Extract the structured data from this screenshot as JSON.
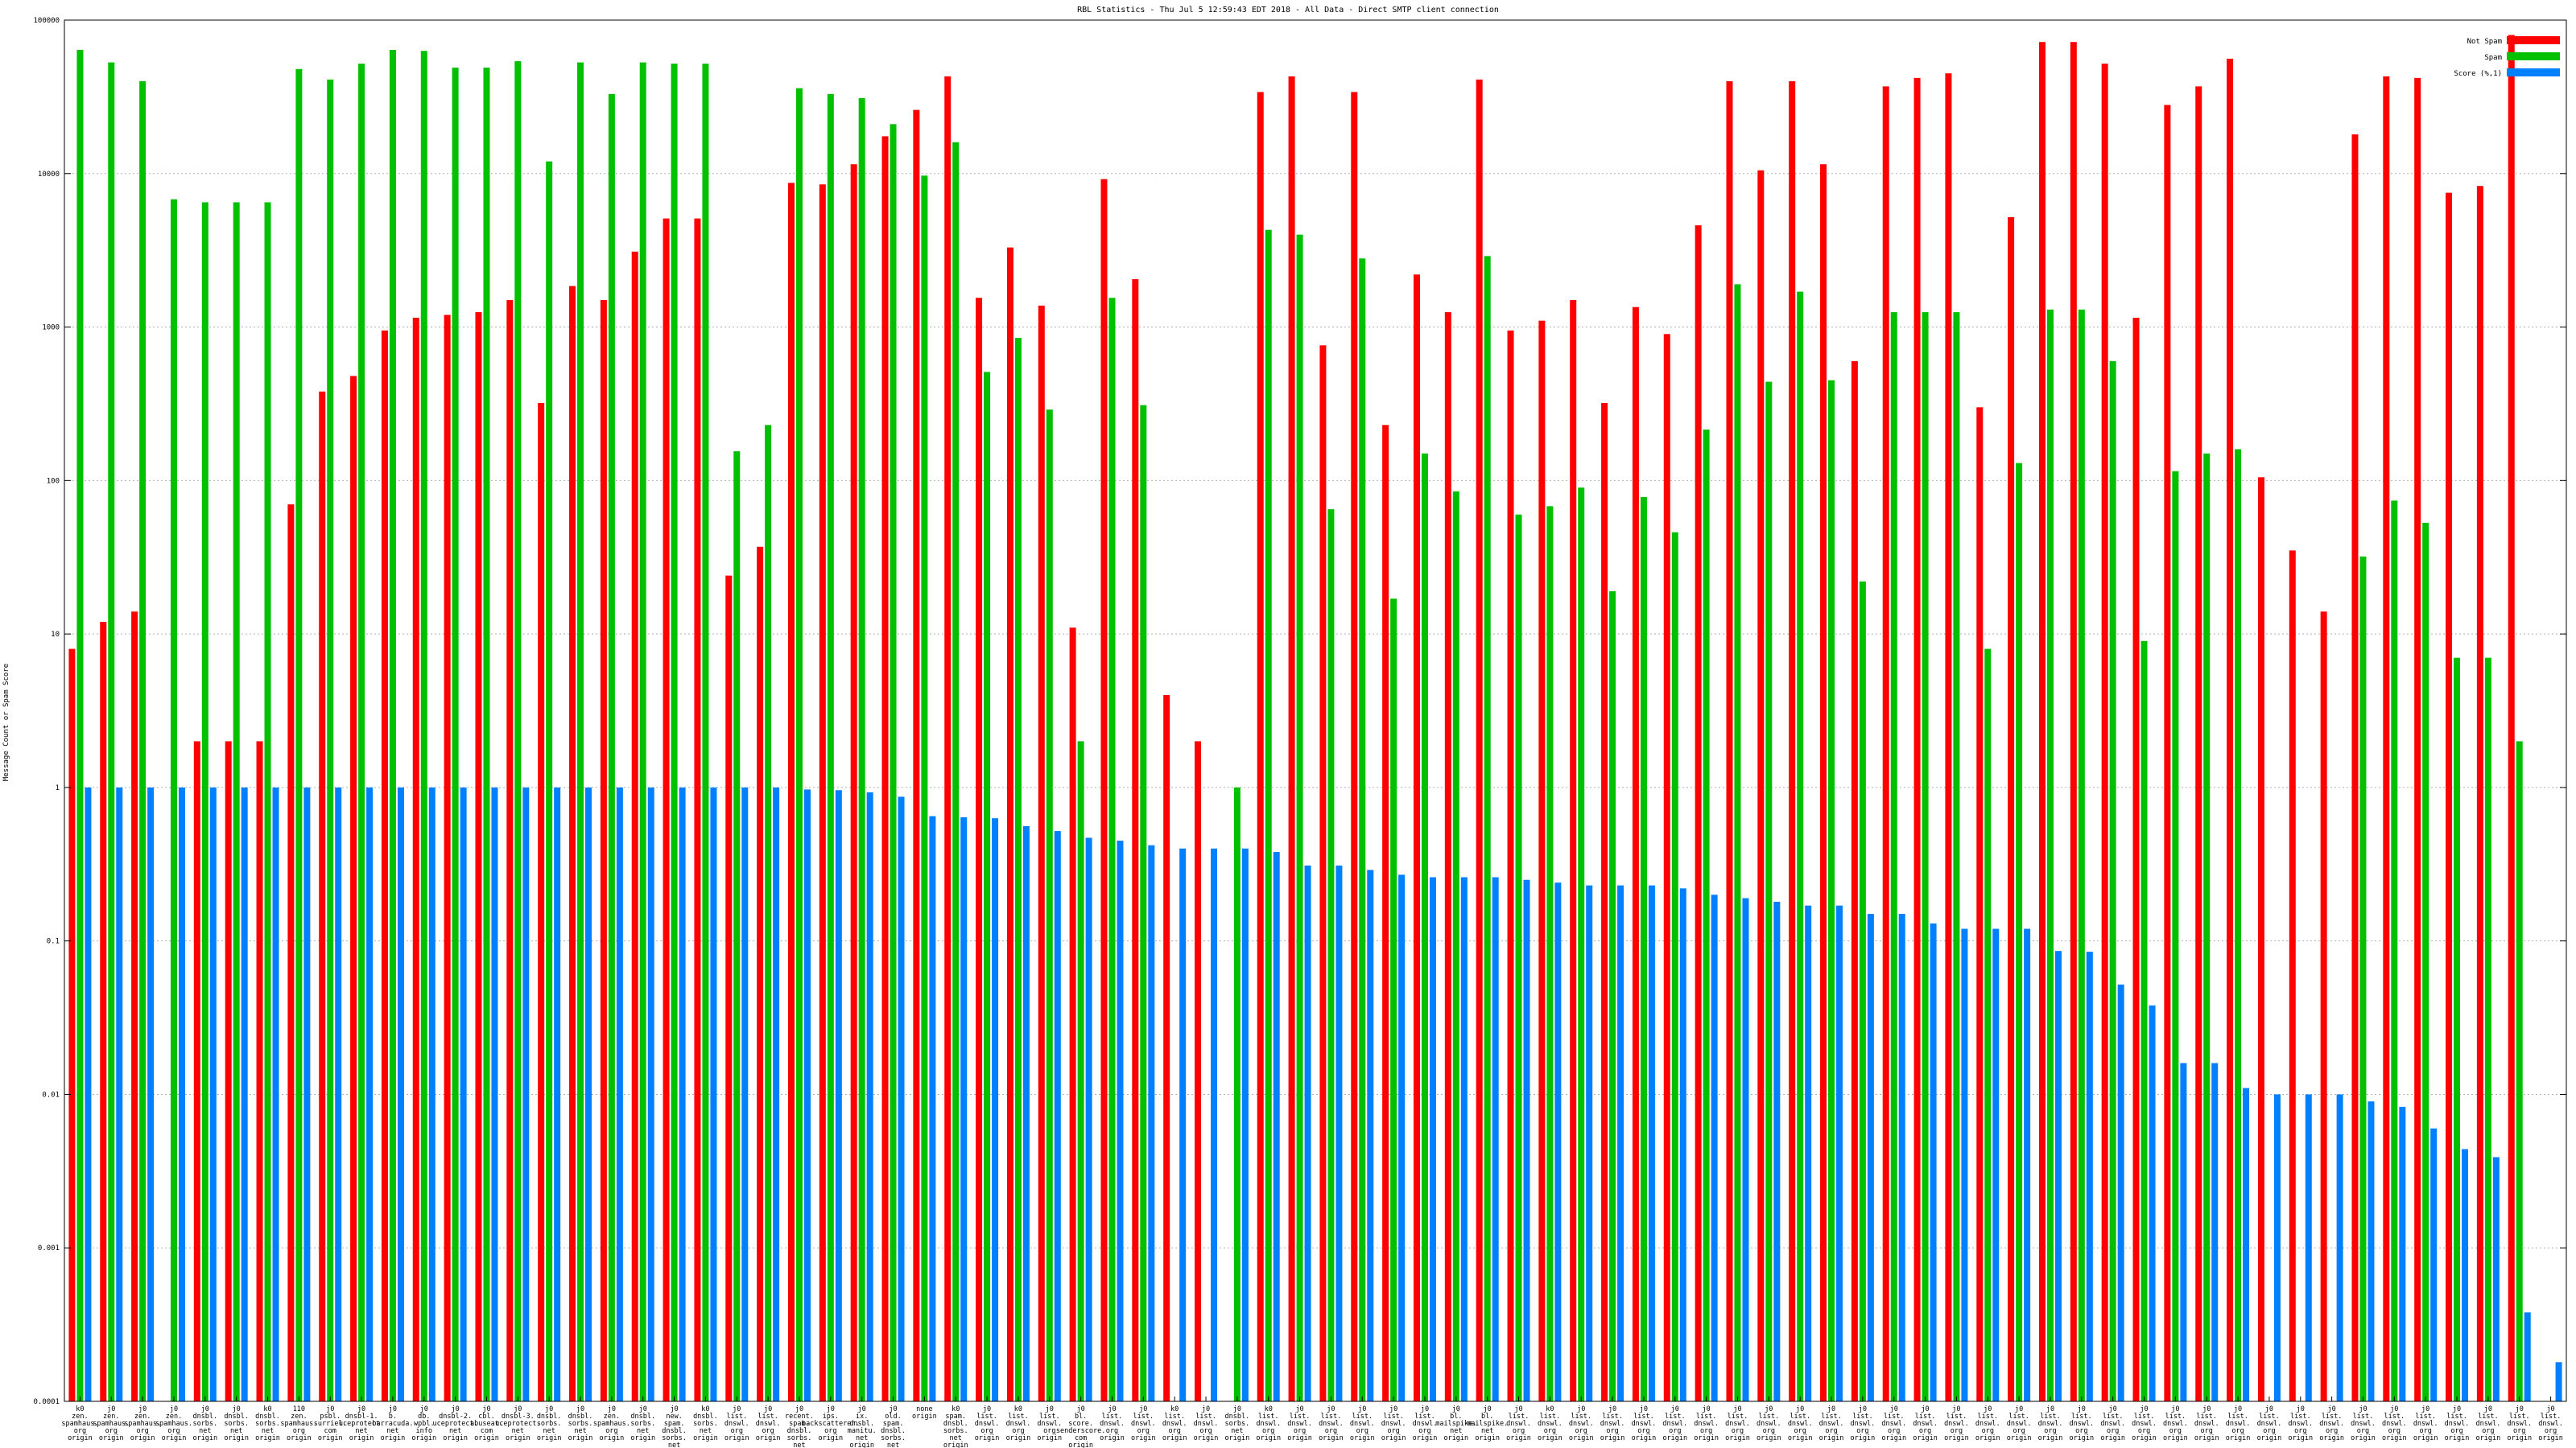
{
  "chart_data": {
    "type": "bar",
    "title": "RBL Statistics - Thu Jul  5 12:59:43 EDT 2018 - All Data - Direct SMTP client connection",
    "ylabel": "Message Count or Spam Score",
    "xlabel": "",
    "yscale": "log",
    "ylim": [
      0.0001,
      100000
    ],
    "yticks": [
      "0.0001",
      "0.001",
      "0.01",
      "0.1",
      "1",
      "10",
      "100",
      "1000",
      "10000",
      "100000"
    ],
    "grid": true,
    "legend_position": "top-right",
    "colors": {
      "not_spam": "#ff0000",
      "spam": "#00c000",
      "score": "#0080ff"
    },
    "categories": [
      [
        "k0",
        "zen.",
        "spamhaus.",
        "org",
        "origin"
      ],
      [
        "j0",
        "zen.",
        "spamhaus.",
        "org",
        "origin"
      ],
      [
        "j0",
        "zen.",
        "spamhaus.",
        "org",
        "origin"
      ],
      [
        "j0",
        "zen.",
        "spamhaus.",
        "org",
        "origin"
      ],
      [
        "j0",
        "dnsbl.",
        "sorbs.",
        "net",
        "origin"
      ],
      [
        "j0",
        "dnsbl.",
        "sorbs.",
        "net",
        "origin"
      ],
      [
        "k0",
        "dnsbl.",
        "sorbs.",
        "net",
        "origin"
      ],
      [
        "110",
        "zen.",
        "spamhaus.",
        "org",
        "origin"
      ],
      [
        "j0",
        "psbl.",
        "surriel.",
        "com",
        "origin"
      ],
      [
        "j0",
        "dnsbl-1.",
        "uceprotect.",
        "net",
        "origin"
      ],
      [
        "j0",
        "b.",
        "barracuda.",
        "net",
        "origin"
      ],
      [
        "j0",
        "db.",
        "wpbl.",
        "info",
        "origin"
      ],
      [
        "j0",
        "dnsbl-2.",
        "uceprotect.",
        "net",
        "origin"
      ],
      [
        "j0",
        "cbl.",
        "abuseat.",
        "com",
        "origin"
      ],
      [
        "j0",
        "dnsbl-3.",
        "uceprotect.",
        "net",
        "origin"
      ],
      [
        "j0",
        "dnsbl.",
        "sorbs.",
        "net",
        "origin"
      ],
      [
        "j0",
        "dnsbl.",
        "sorbs.",
        "net",
        "origin"
      ],
      [
        "j0",
        "zen.",
        "spamhaus.",
        "org",
        "origin"
      ],
      [
        "j0",
        "dnsbl.",
        "sorbs.",
        "net",
        "origin"
      ],
      [
        "j0",
        "new.",
        "spam.",
        "dnsbl.",
        "sorbs.",
        "net",
        "origin"
      ],
      [
        "k0",
        "dnsbl.",
        "sorbs.",
        "net",
        "origin"
      ],
      [
        "j0",
        "list.",
        "dnswl.",
        "org",
        "origin"
      ],
      [
        "j0",
        "list.",
        "dnswl.",
        "org",
        "origin"
      ],
      [
        "j0",
        "recent.",
        "spam.",
        "dnsbl.",
        "sorbs.",
        "net",
        "origin"
      ],
      [
        "j0",
        "ips.",
        "backscatterer.",
        "org",
        "origin"
      ],
      [
        "j0",
        "ix.",
        "dnsbl.",
        "manitu.",
        "net",
        "origin"
      ],
      [
        "j0",
        "old.",
        "spam.",
        "dnsbl.",
        "sorbs.",
        "net",
        "origin"
      ],
      [
        "none",
        "origin"
      ],
      [
        "k0",
        "spam.",
        "dnsbl.",
        "sorbs.",
        "net",
        "origin"
      ],
      [
        "j0",
        "list.",
        "dnswl.",
        "org",
        "origin"
      ],
      [
        "k0",
        "list.",
        "dnswl.",
        "org",
        "origin"
      ],
      [
        "j0",
        "list.",
        "dnswl.",
        "org",
        "origin"
      ],
      [
        "j0",
        "bl.",
        "score.",
        "senderscore.",
        "com",
        "origin"
      ],
      [
        "j0",
        "list.",
        "dnswl.",
        "org",
        "origin"
      ],
      [
        "j0",
        "list.",
        "dnswl.",
        "org",
        "origin"
      ],
      [
        "k0",
        "list.",
        "dnswl.",
        "org",
        "origin"
      ],
      [
        "j0",
        "list.",
        "dnswl.",
        "org",
        "origin"
      ],
      [
        "j0",
        "dnsbl.",
        "sorbs.",
        "net",
        "origin"
      ],
      [
        "k0",
        "list.",
        "dnswl.",
        "org",
        "origin"
      ],
      [
        "j0",
        "list.",
        "dnswl.",
        "org",
        "origin"
      ],
      [
        "j0",
        "list.",
        "dnswl.",
        "org",
        "origin"
      ],
      [
        "j0",
        "list.",
        "dnswl.",
        "org",
        "origin"
      ],
      [
        "j0",
        "list.",
        "dnswl.",
        "org",
        "origin"
      ],
      [
        "j0",
        "list.",
        "dnswl.",
        "org",
        "origin"
      ],
      [
        "j0",
        "bl.",
        "mailspike.",
        "net",
        "origin"
      ],
      [
        "j0",
        "bl.",
        "mailspike.",
        "net",
        "origin"
      ],
      [
        "j0",
        "list.",
        "dnswl.",
        "org",
        "origin"
      ],
      [
        "k0",
        "list.",
        "dnswl.",
        "org",
        "origin"
      ],
      [
        "j0",
        "list.",
        "dnswl.",
        "org",
        "origin"
      ],
      [
        "j0",
        "list.",
        "dnswl.",
        "org",
        "origin"
      ],
      [
        "j0",
        "list.",
        "dnswl.",
        "org",
        "origin"
      ],
      [
        "j0",
        "list.",
        "dnswl.",
        "org",
        "origin"
      ],
      [
        "j0",
        "list.",
        "dnswl.",
        "org",
        "origin"
      ],
      [
        "j0",
        "list.",
        "dnswl.",
        "org",
        "origin"
      ],
      [
        "j0",
        "list.",
        "dnswl.",
        "org",
        "origin"
      ],
      [
        "j0",
        "list.",
        "dnswl.",
        "org",
        "origin"
      ],
      [
        "j0",
        "list.",
        "dnswl.",
        "org",
        "origin"
      ],
      [
        "j0",
        "list.",
        "dnswl.",
        "org",
        "origin"
      ],
      [
        "j0",
        "list.",
        "dnswl.",
        "org",
        "origin"
      ],
      [
        "j0",
        "list.",
        "dnswl.",
        "org",
        "origin"
      ],
      [
        "j0",
        "list.",
        "dnswl.",
        "org",
        "origin"
      ],
      [
        "j0",
        "list.",
        "dnswl.",
        "org",
        "origin"
      ],
      [
        "j0",
        "list.",
        "dnswl.",
        "org",
        "origin"
      ],
      [
        "j0",
        "list.",
        "dnswl.",
        "org",
        "origin"
      ],
      [
        "j0",
        "list.",
        "dnswl.",
        "org",
        "origin"
      ],
      [
        "j0",
        "list.",
        "dnswl.",
        "org",
        "origin"
      ],
      [
        "j0",
        "list.",
        "dnswl.",
        "org",
        "origin"
      ],
      [
        "j0",
        "list.",
        "dnswl.",
        "org",
        "origin"
      ],
      [
        "j0",
        "list.",
        "dnswl.",
        "org",
        "origin"
      ],
      [
        "j0",
        "list.",
        "dnswl.",
        "org",
        "origin"
      ],
      [
        "j0",
        "list.",
        "dnswl.",
        "org",
        "origin"
      ],
      [
        "j0",
        "list.",
        "dnswl.",
        "org",
        "origin"
      ],
      [
        "j0",
        "list.",
        "dnswl.",
        "org",
        "origin"
      ],
      [
        "j0",
        "list.",
        "dnswl.",
        "org",
        "origin"
      ],
      [
        "j0",
        "list.",
        "dnswl.",
        "org",
        "origin"
      ],
      [
        "j0",
        "list.",
        "dnswl.",
        "org",
        "origin"
      ],
      [
        "j0",
        "list.",
        "dnswl.",
        "org",
        "origin"
      ],
      [
        "j0",
        "list.",
        "dnswl.",
        "org",
        "origin"
      ],
      [
        "j0",
        "list.",
        "dnswl.",
        "org",
        "origin"
      ],
      [
        "j0",
        "list.",
        "dnswl.",
        "org",
        "origin"
      ]
    ],
    "series": [
      {
        "name": "Not Spam",
        "values": [
          8,
          12,
          14,
          null,
          2,
          2,
          2,
          70,
          380,
          480,
          950,
          1150,
          1200,
          1250,
          1500,
          320,
          1850,
          1500,
          3100,
          5100,
          5100,
          24,
          37,
          8700,
          8500,
          11500,
          17500,
          26000,
          43000,
          1550,
          3300,
          1380,
          11,
          9200,
          2050,
          4,
          2,
          null,
          34000,
          43000,
          760,
          34000,
          230,
          2200,
          1250,
          41000,
          950,
          1100,
          1500,
          320,
          1350,
          900,
          4600,
          40000,
          10500,
          40000,
          11500,
          600,
          37000,
          42000,
          45000,
          300,
          5200,
          72000,
          72000,
          52000,
          1150,
          28000,
          37000,
          56000,
          105,
          35,
          14,
          18000,
          43000,
          42000,
          7500,
          8300,
          80000,
          null
        ]
      },
      {
        "name": "Spam",
        "values": [
          64000,
          53000,
          40000,
          6800,
          6500,
          6500,
          6500,
          48000,
          41000,
          52000,
          64000,
          63000,
          49000,
          49000,
          54000,
          12000,
          53000,
          33000,
          53000,
          52000,
          52000,
          155,
          230,
          36000,
          33000,
          31000,
          21000,
          9700,
          16000,
          510,
          850,
          290,
          2,
          1550,
          310,
          null,
          null,
          1,
          4300,
          4000,
          65,
          2800,
          17,
          150,
          85,
          2900,
          60,
          68,
          90,
          19,
          78,
          46,
          215,
          1900,
          440,
          1700,
          450,
          22,
          1250,
          1250,
          1250,
          8,
          130,
          1300,
          1300,
          600,
          9,
          115,
          150,
          160,
          null,
          null,
          null,
          32,
          74,
          53,
          7,
          7,
          2,
          null
        ]
      },
      {
        "name": "Score (%,1)",
        "values": [
          1,
          1,
          1,
          1,
          1,
          1,
          1,
          1,
          1,
          1,
          1,
          1,
          1,
          1,
          1,
          1,
          1,
          1,
          1,
          1,
          1,
          1,
          1,
          0.97,
          0.96,
          0.93,
          0.87,
          0.65,
          0.64,
          0.63,
          0.56,
          0.52,
          0.47,
          0.45,
          0.42,
          0.4,
          0.4,
          0.4,
          0.38,
          0.31,
          0.31,
          0.29,
          0.27,
          0.26,
          0.26,
          0.26,
          0.25,
          0.24,
          0.23,
          0.23,
          0.23,
          0.22,
          0.2,
          0.19,
          0.18,
          0.17,
          0.17,
          0.15,
          0.15,
          0.13,
          0.12,
          0.12,
          0.12,
          0.086,
          0.085,
          0.052,
          0.038,
          0.016,
          0.016,
          0.011,
          0.01,
          0.01,
          0.01,
          0.009,
          0.0083,
          0.006,
          0.0044,
          0.0039,
          0.00038,
          0.00018
        ]
      }
    ]
  }
}
